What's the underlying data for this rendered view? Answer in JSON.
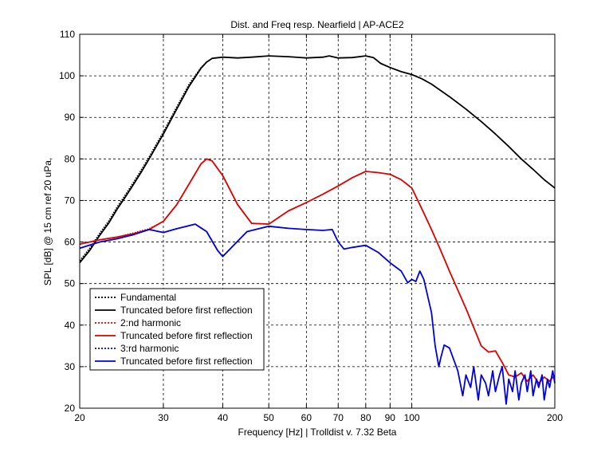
{
  "chart_data": {
    "type": "line",
    "title": "Dist. and Freq resp. Nearfield | AP-ACE2",
    "xlabel": "Frequency [Hz] | Trolldist v. 7.32 Beta",
    "ylabel": "SPL [dB] @ 15 cm ref 20 uPa,",
    "xscale": "log",
    "xlim": [
      20,
      200
    ],
    "ylim": [
      20,
      110
    ],
    "grid": true,
    "legend_position": "bottom-left",
    "x_ticks": [
      20,
      30,
      40,
      50,
      60,
      70,
      80,
      90,
      100,
      200
    ],
    "x_tick_labels": [
      "20",
      "30",
      "40",
      "50",
      "60",
      "70",
      "80",
      "90",
      "100",
      "200"
    ],
    "y_ticks": [
      20,
      30,
      40,
      50,
      60,
      70,
      80,
      90,
      100,
      110
    ],
    "y_tick_labels": [
      "20",
      "30",
      "40",
      "50",
      "60",
      "70",
      "80",
      "90",
      "100",
      "110"
    ],
    "series": [
      {
        "name": "Fundamental",
        "color": "#000000",
        "style": "dotted",
        "x": [
          20,
          21,
          22,
          23,
          24,
          25,
          26,
          27,
          28,
          30,
          32,
          34,
          36,
          37
        ],
        "y": [
          55.5,
          58.5,
          62,
          65,
          68.5,
          71.5,
          74.5,
          77.5,
          80.5,
          86.5,
          92.5,
          98,
          102,
          103.3
        ]
      },
      {
        "name": "Truncated before first reflection",
        "color": "#000000",
        "style": "solid",
        "x": [
          20,
          21,
          22,
          23,
          24,
          25,
          26,
          27,
          28,
          30,
          32,
          34,
          36,
          37,
          38,
          40,
          43,
          46,
          50,
          55,
          60,
          65,
          67,
          70,
          75,
          80,
          83,
          86,
          90,
          95,
          100,
          105,
          110,
          120,
          130,
          140,
          150,
          160,
          170,
          180,
          190,
          200
        ],
        "y": [
          55,
          58,
          61.5,
          64.5,
          68,
          71,
          74,
          77,
          80,
          86,
          92,
          97.5,
          101.8,
          103.3,
          104.2,
          104.5,
          104.3,
          104.5,
          104.8,
          104.6,
          104.3,
          104.5,
          104.8,
          104.3,
          104.4,
          104.8,
          104.4,
          103,
          102,
          101,
          100.3,
          99.3,
          98,
          95,
          92,
          89,
          86,
          83,
          80,
          77.5,
          75,
          73
        ]
      },
      {
        "name": "2:nd harmonic",
        "color": "#e00000",
        "style": "dotted",
        "x": [
          20,
          22,
          24,
          26,
          28,
          30,
          32,
          34,
          36,
          37,
          38,
          40,
          43,
          46,
          50
        ],
        "y": [
          59.5,
          60.5,
          61.2,
          62.2,
          63.2,
          65,
          69,
          74,
          78.8,
          80,
          79.5,
          76,
          69,
          64.5,
          64.3
        ]
      },
      {
        "name": "Truncated before first reflection",
        "color": "#e00000",
        "style": "solid",
        "x": [
          20,
          22,
          24,
          26,
          28,
          30,
          32,
          34,
          36,
          37,
          38,
          40,
          43,
          46,
          50,
          55,
          60,
          65,
          70,
          75,
          80,
          85,
          90,
          95,
          100,
          104,
          110,
          115,
          120,
          130,
          140,
          145,
          150,
          155,
          160,
          165,
          170,
          175,
          180,
          185,
          190,
          195,
          200
        ],
        "y": [
          59.5,
          60.5,
          61.2,
          62,
          63,
          65,
          69,
          74,
          78.8,
          80,
          79.5,
          76,
          69,
          64.5,
          64.3,
          67.5,
          69.5,
          71.5,
          73.5,
          75.5,
          77,
          76.7,
          76.3,
          75,
          73,
          69,
          63,
          58,
          53,
          44,
          35,
          33.5,
          33.8,
          31,
          28,
          27.5,
          28.5,
          26.5,
          28,
          26,
          27.5,
          26.5,
          28
        ]
      },
      {
        "name": "3:rd harmonic",
        "color": "#0000e0",
        "style": "dotted",
        "x": [
          20,
          22,
          24,
          26,
          28,
          30,
          32,
          35,
          37,
          39,
          40,
          42,
          45,
          50,
          55
        ],
        "y": [
          58.5,
          60,
          60.8,
          61.8,
          63,
          62.3,
          63.2,
          64.3,
          62.5,
          58,
          56.5,
          59,
          62.5,
          63.8,
          63.3
        ]
      },
      {
        "name": "Truncated before first reflection",
        "color": "#0000e0",
        "style": "solid",
        "x": [
          20,
          22,
          24,
          26,
          28,
          30,
          32,
          35,
          37,
          39,
          40,
          42,
          45,
          50,
          55,
          60,
          65,
          68,
          70,
          72,
          75,
          80,
          85,
          90,
          95,
          98,
          100,
          102,
          104,
          106,
          108,
          110,
          112,
          114,
          115,
          117,
          120,
          125,
          128,
          130,
          133,
          135,
          138,
          140,
          143,
          145,
          148,
          150,
          153,
          155,
          158,
          160,
          163,
          165,
          168,
          170,
          173,
          175,
          178,
          180,
          183,
          185,
          188,
          190,
          193,
          195,
          198,
          200
        ],
        "y": [
          58.5,
          60,
          60.8,
          61.8,
          63,
          62.3,
          63.2,
          64.3,
          62.5,
          58,
          56.5,
          59,
          62.5,
          63.8,
          63.3,
          63,
          62.8,
          63,
          60,
          58.3,
          58.7,
          59.2,
          57.5,
          55,
          53,
          50.2,
          51,
          50.5,
          53,
          51,
          47,
          43,
          35,
          30,
          32,
          35.2,
          34.5,
          29,
          23,
          28,
          25,
          30,
          22,
          28,
          26,
          23,
          29,
          24,
          28,
          30,
          21,
          27,
          24,
          29,
          22,
          26,
          28,
          24,
          29,
          23,
          27,
          25,
          28,
          22,
          27,
          25,
          29,
          26
        ]
      }
    ]
  }
}
